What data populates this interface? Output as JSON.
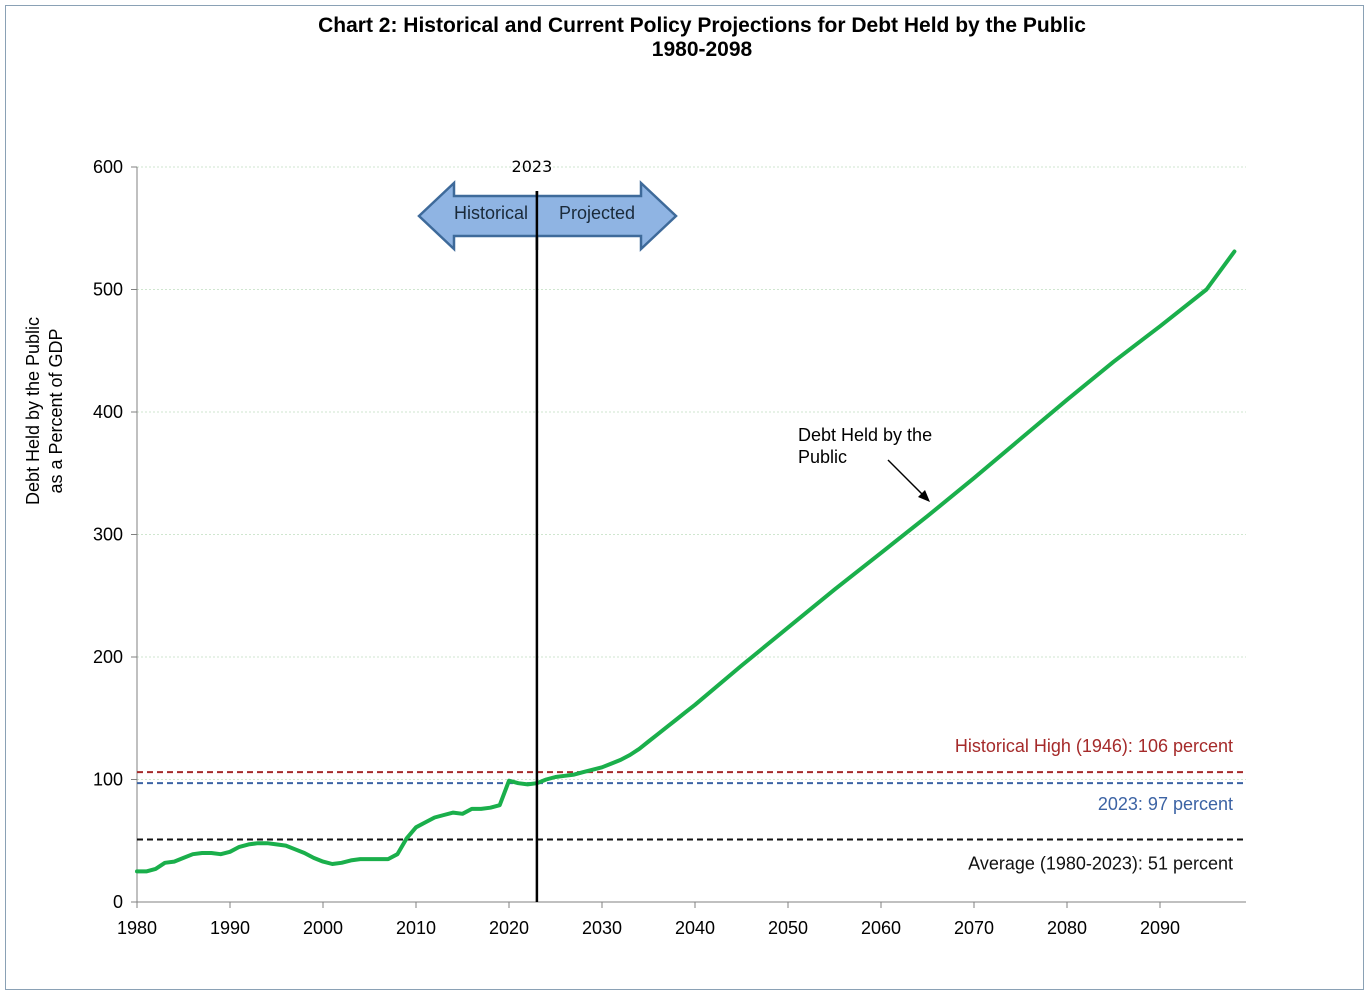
{
  "chart_data": {
    "type": "line",
    "title": "Chart 2:  Historical and Current Policy Projections for Debt Held by the Public",
    "subtitle": "1980-2098",
    "xlabel": "",
    "ylabel_line1": "Debt Held by the Public",
    "ylabel_line2": "as a Percent of GDP",
    "xlim": [
      1980,
      2098
    ],
    "ylim": [
      0,
      600
    ],
    "xticks": [
      "1980",
      "1990",
      "2000",
      "2010",
      "2020",
      "2030",
      "2040",
      "2050",
      "2060",
      "2070",
      "2080",
      "2090"
    ],
    "yticks": [
      "0",
      "100",
      "200",
      "300",
      "400",
      "500",
      "600"
    ],
    "grid": true,
    "series": [
      {
        "name": "Debt Held by the Public",
        "color": "#1aaf4b",
        "x": [
          1980,
          1981,
          1982,
          1983,
          1984,
          1985,
          1986,
          1987,
          1988,
          1989,
          1990,
          1991,
          1992,
          1993,
          1994,
          1995,
          1996,
          1997,
          1998,
          1999,
          2000,
          2001,
          2002,
          2003,
          2004,
          2005,
          2006,
          2007,
          2008,
          2009,
          2010,
          2011,
          2012,
          2013,
          2014,
          2015,
          2016,
          2017,
          2018,
          2019,
          2020,
          2021,
          2022,
          2023,
          2024,
          2025,
          2026,
          2027,
          2028,
          2029,
          2030,
          2031,
          2032,
          2033,
          2034,
          2035,
          2036,
          2037,
          2038,
          2039,
          2040,
          2045,
          2050,
          2055,
          2060,
          2065,
          2070,
          2075,
          2080,
          2085,
          2090,
          2095,
          2098
        ],
        "values": [
          25,
          25,
          27,
          32,
          33,
          36,
          39,
          40,
          40,
          39,
          41,
          45,
          47,
          48,
          48,
          47,
          46,
          43,
          40,
          36,
          33,
          31,
          32,
          34,
          35,
          35,
          35,
          35,
          39,
          52,
          61,
          65,
          69,
          71,
          73,
          72,
          76,
          76,
          77,
          79,
          99,
          97,
          96,
          97,
          100,
          102,
          103,
          104,
          106,
          108,
          110,
          113,
          116,
          120,
          125,
          131,
          137,
          143,
          149,
          155,
          161,
          193,
          224,
          255,
          285,
          315,
          346,
          378,
          410,
          441,
          470,
          500,
          531
        ]
      }
    ],
    "reference_lines": [
      {
        "label": "Historical High (1946): 106 percent",
        "value": 106,
        "color": "#a52a2a"
      },
      {
        "label": "2023: 97 percent",
        "value": 97,
        "color": "#3c63a4"
      },
      {
        "label": "Average (1980-2023): 51 percent",
        "value": 51,
        "color": "#111111"
      }
    ],
    "divider": {
      "year": 2023,
      "label": "2023"
    },
    "arrow": {
      "left_label": "Historical",
      "right_label": "Projected",
      "color": "#8fb4e3"
    },
    "annotation": {
      "line1": "Debt Held by the",
      "line2": "Public"
    }
  }
}
